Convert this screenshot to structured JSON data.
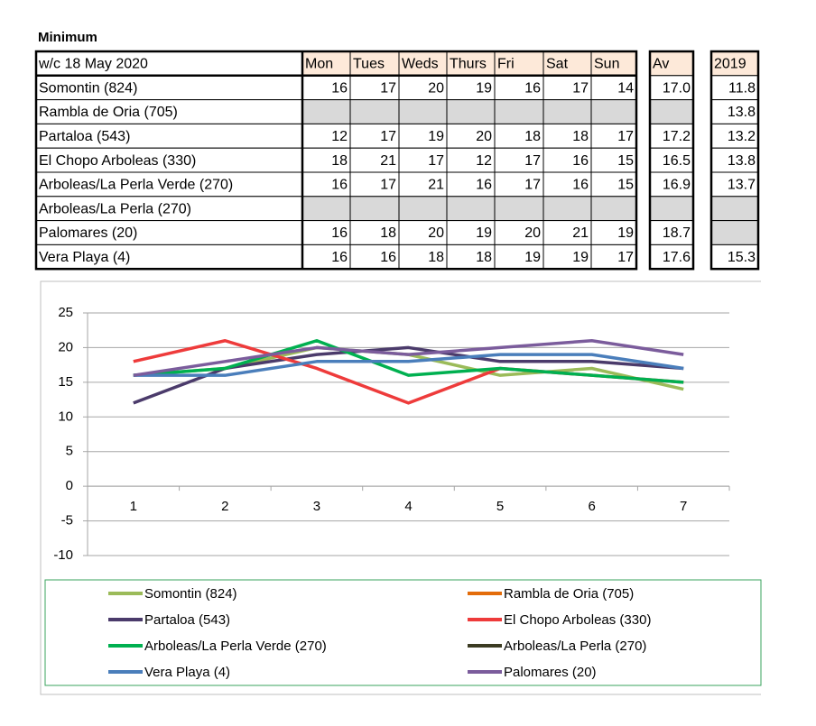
{
  "table": {
    "title": "Minimum",
    "header": [
      "w/c 18 May  2020",
      "Mon",
      "Tues",
      "Weds",
      "Thurs",
      "Fri",
      "Sat",
      "Sun",
      "Av",
      "2019"
    ],
    "rows": [
      [
        "Somontin (824)",
        "16",
        "17",
        "20",
        "19",
        "16",
        "17",
        "14",
        "17.0",
        "11.8"
      ],
      [
        "Rambla de Oria (705)",
        null,
        null,
        null,
        null,
        null,
        null,
        null,
        null,
        "13.8"
      ],
      [
        "Partaloa (543)",
        "12",
        "17",
        "19",
        "20",
        "18",
        "18",
        "17",
        "17.2",
        "13.2"
      ],
      [
        "El Chopo Arboleas (330)",
        "18",
        "21",
        "17",
        "12",
        "17",
        "16",
        "15",
        "16.5",
        "13.8"
      ],
      [
        "Arboleas/La Perla Verde (270)",
        "16",
        "17",
        "21",
        "16",
        "17",
        "16",
        "15",
        "16.9",
        "13.7"
      ],
      [
        "Arboleas/La Perla (270)",
        null,
        null,
        null,
        null,
        null,
        null,
        null,
        null,
        null
      ],
      [
        "Palomares (20)",
        "16",
        "18",
        "20",
        "19",
        "20",
        "21",
        "19",
        "18.7",
        null
      ],
      [
        "Vera Playa (4)",
        "16",
        "16",
        "18",
        "18",
        "19",
        "19",
        "17",
        "17.6",
        "15.3"
      ]
    ]
  },
  "chart_data": {
    "type": "line",
    "categories": [
      "1",
      "2",
      "3",
      "4",
      "5",
      "6",
      "7"
    ],
    "ylim": [
      -10,
      25
    ],
    "yticks": [
      -10,
      -5,
      0,
      5,
      10,
      15,
      20,
      25
    ],
    "grid": true,
    "series": [
      {
        "name": "Somontin (824)",
        "color": "#9bbb59",
        "values": [
          16,
          17,
          20,
          19,
          16,
          17,
          14
        ]
      },
      {
        "name": "Rambla de Oria (705)",
        "color": "#e36c0a",
        "values": [
          null,
          null,
          null,
          null,
          null,
          null,
          null
        ]
      },
      {
        "name": "Partaloa (543)",
        "color": "#4b3b6b",
        "values": [
          12,
          17,
          19,
          20,
          18,
          18,
          17
        ]
      },
      {
        "name": "El Chopo Arboleas (330)",
        "color": "#ee3b3b",
        "values": [
          18,
          21,
          17,
          12,
          17,
          16,
          15
        ]
      },
      {
        "name": "Arboleas/La Perla Verde (270)",
        "color": "#00b050",
        "values": [
          16,
          17,
          21,
          16,
          17,
          16,
          15
        ]
      },
      {
        "name": "Arboleas/La Perla (270)",
        "color": "#3b3b22",
        "values": [
          null,
          null,
          null,
          null,
          null,
          null,
          null
        ]
      },
      {
        "name": "Vera Playa (4)",
        "color": "#4a7ebb",
        "values": [
          16,
          16,
          18,
          18,
          19,
          19,
          17
        ]
      },
      {
        "name": "Palomares (20)",
        "color": "#7b5c9c",
        "values": [
          16,
          18,
          20,
          19,
          20,
          21,
          19
        ]
      }
    ]
  }
}
